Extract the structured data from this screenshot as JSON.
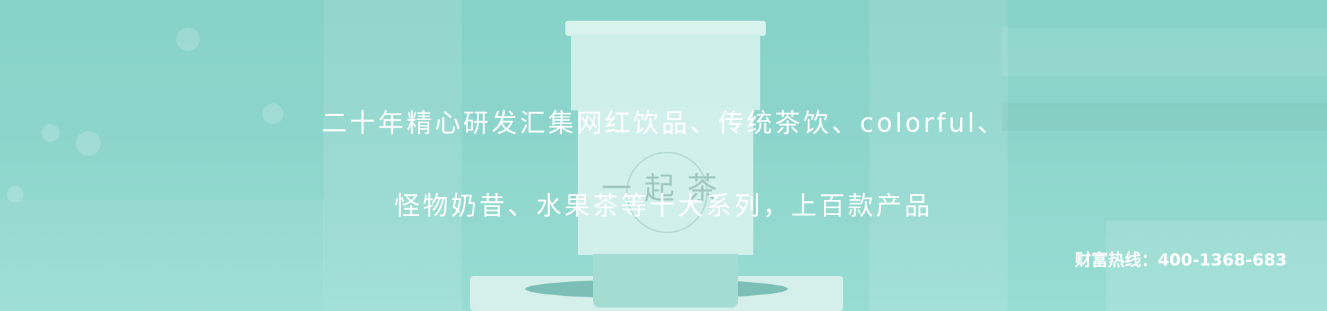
{
  "banner": {
    "headline_line1": "二十年精心研发汇集网红饮品、传统茶饮、colorful、",
    "headline_line2": "怪物奶昔、水果茶等十大系列，上百款产品",
    "hotline_label": "财富热线：",
    "hotline_number": "400-1368-683",
    "cup_logo_text": "一起茶",
    "overlay_color": "#8ed5cc"
  }
}
